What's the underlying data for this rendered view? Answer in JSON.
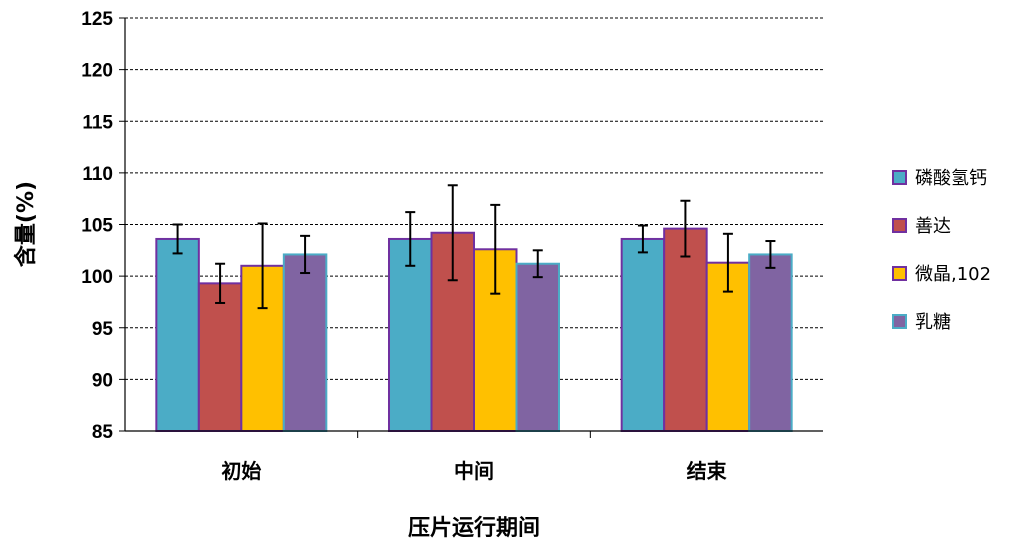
{
  "chart_data": {
    "type": "bar",
    "title": "",
    "xlabel": "压片运行期间",
    "ylabel": "含量(%)",
    "ylim": [
      85,
      125
    ],
    "yticks": [
      85,
      90,
      95,
      100,
      105,
      110,
      115,
      120,
      125
    ],
    "grid": "horizontal dashed",
    "legend_position": "right",
    "error_bars": true,
    "categories": [
      "初始",
      "中间",
      "结束"
    ],
    "series": [
      {
        "name": "磷酸氢钙",
        "color": "#4BACC6",
        "border": "#7030A0",
        "values": [
          103.6,
          103.6,
          103.6
        ],
        "errors": [
          1.4,
          2.6,
          1.3
        ]
      },
      {
        "name": "善达",
        "color": "#C0504D",
        "border": "#7030A0",
        "values": [
          99.3,
          104.2,
          104.6
        ],
        "errors": [
          1.9,
          4.6,
          2.7
        ]
      },
      {
        "name": "微晶,102",
        "color": "#FFC000",
        "border": "#7030A0",
        "values": [
          101.0,
          102.6,
          101.3
        ],
        "errors": [
          4.1,
          4.3,
          2.8
        ]
      },
      {
        "name": "乳糖",
        "color": "#8064A2",
        "border": "#4BACC6",
        "values": [
          102.1,
          101.2,
          102.1
        ],
        "errors": [
          1.8,
          1.3,
          1.3
        ]
      }
    ]
  }
}
